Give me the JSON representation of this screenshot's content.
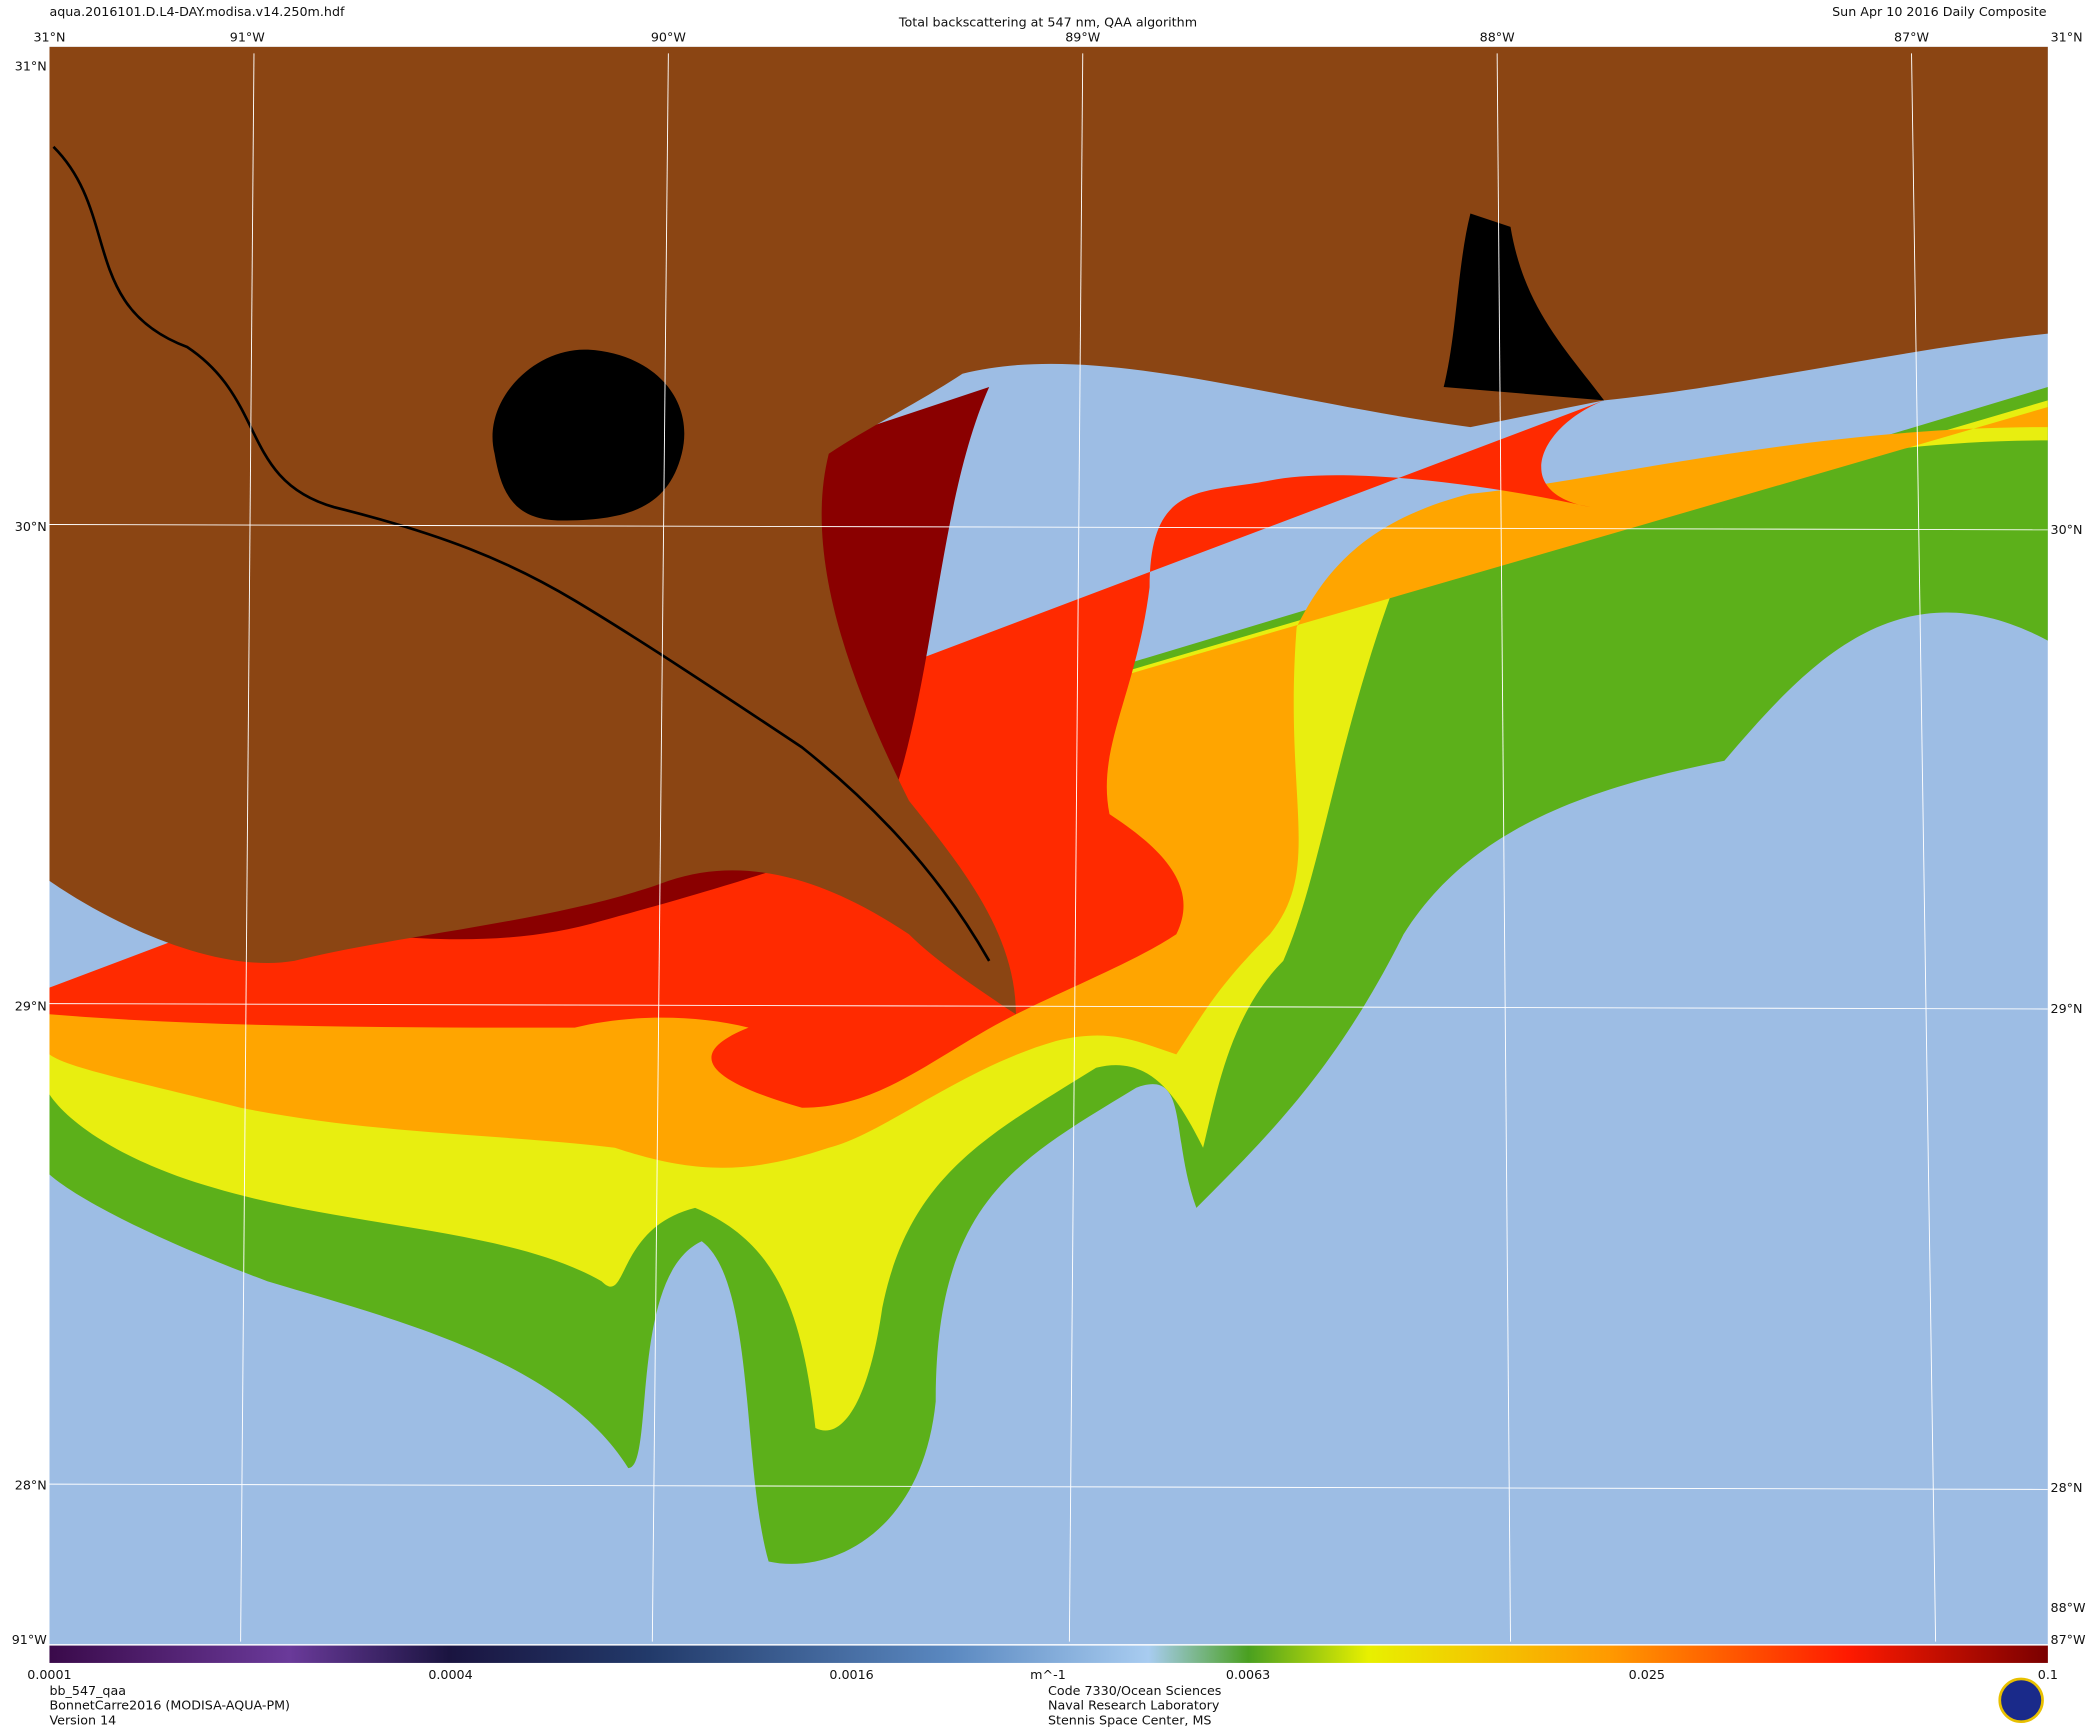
{
  "header": {
    "filename": "aqua.2016101.D.L4-DAY.modisa.v14.250m.hdf",
    "title": "Total backscattering at 547 nm, QAA algorithm",
    "date": "Sun Apr 10 2016 Daily Composite"
  },
  "map": {
    "top_labels": [
      "31°N",
      "91°W",
      "90°W",
      "89°W",
      "88°W",
      "87°W",
      "31°N"
    ],
    "left_labels": [
      "31°N",
      "30°N",
      "29°N",
      "28°N",
      "91°W"
    ],
    "right_labels": [
      "30°N",
      "29°N",
      "28°N",
      "88°W",
      "87°W"
    ]
  },
  "colorbar": {
    "ticks": [
      0.0001,
      0.0004,
      0.0016,
      0.0063,
      0.025,
      0.1
    ],
    "lim": [
      0.0001,
      0.1
    ],
    "log": true,
    "unit": "m^-1"
  },
  "footer": {
    "left": [
      "bb_547_qaa",
      "BonnetCarre2016 (MODISA-AQUA-PM)",
      "Version 14"
    ],
    "center": [
      "Code 7330/Ocean Sciences",
      "Naval Research Laboratory",
      "Stennis Space Center, MS"
    ]
  }
}
